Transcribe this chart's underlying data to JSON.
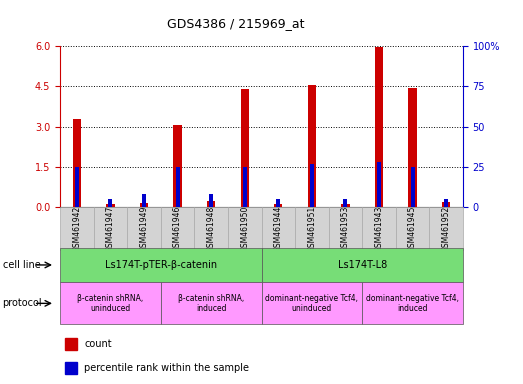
{
  "title": "GDS4386 / 215969_at",
  "samples": [
    "GSM461942",
    "GSM461947",
    "GSM461949",
    "GSM461946",
    "GSM461948",
    "GSM461950",
    "GSM461944",
    "GSM461951",
    "GSM461953",
    "GSM461943",
    "GSM461945",
    "GSM461952"
  ],
  "counts": [
    3.3,
    0.12,
    0.15,
    3.05,
    0.25,
    4.4,
    0.12,
    4.55,
    0.12,
    5.95,
    4.45,
    0.2
  ],
  "percentiles": [
    25,
    5,
    8,
    25,
    8,
    25,
    5,
    27,
    5,
    28,
    25,
    5
  ],
  "ylim_left": [
    0,
    6
  ],
  "ylim_right": [
    0,
    100
  ],
  "yticks_left": [
    0,
    1.5,
    3,
    4.5,
    6
  ],
  "yticks_right": [
    0,
    25,
    50,
    75,
    100
  ],
  "cell_line_groups": [
    {
      "label": "Ls174T-pTER-β-catenin",
      "start": 0,
      "end": 6,
      "color": "#77dd77"
    },
    {
      "label": "Ls174T-L8",
      "start": 6,
      "end": 12,
      "color": "#77dd77"
    }
  ],
  "protocol_groups": [
    {
      "label": "β-catenin shRNA,\nuninduced",
      "start": 0,
      "end": 3,
      "color": "#ff99ff"
    },
    {
      "label": "β-catenin shRNA,\ninduced",
      "start": 3,
      "end": 6,
      "color": "#ff99ff"
    },
    {
      "label": "dominant-negative Tcf4,\nuninduced",
      "start": 6,
      "end": 9,
      "color": "#ff99ff"
    },
    {
      "label": "dominant-negative Tcf4,\ninduced",
      "start": 9,
      "end": 12,
      "color": "#ff99ff"
    }
  ],
  "bar_color": "#cc0000",
  "percentile_color": "#0000cc",
  "tick_label_color_left": "#cc0000",
  "tick_label_color_right": "#0000cc",
  "bg_color": "#ffffff"
}
